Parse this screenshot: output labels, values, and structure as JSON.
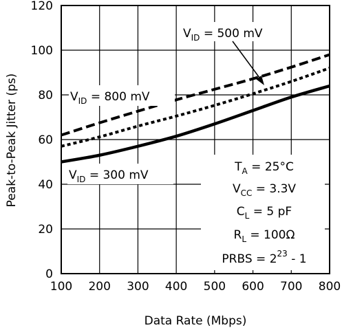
{
  "chart_data": {
    "type": "line",
    "xlabel": "Data Rate (Mbps)",
    "ylabel": "Peak-to-Peak Jitter (ps)",
    "xlim": [
      100,
      800
    ],
    "ylim": [
      0,
      120
    ],
    "x_ticks": [
      "100",
      "200",
      "300",
      "400",
      "500",
      "600",
      "700",
      "800"
    ],
    "y_ticks": [
      "0",
      "20",
      "40",
      "60",
      "80",
      "100",
      "120"
    ],
    "grid": true,
    "series": [
      {
        "name": "V_ID = 800 mV",
        "style": "dashed",
        "x": [
          100,
          200,
          300,
          400,
          500,
          600,
          700,
          800
        ],
        "y": [
          62,
          67.5,
          72.7,
          77.8,
          82.5,
          87.2,
          92.4,
          98
        ]
      },
      {
        "name": "V_ID = 500 mV",
        "style": "dotted",
        "x": [
          100,
          200,
          300,
          400,
          500,
          600,
          700,
          800
        ],
        "y": [
          57,
          61.2,
          66,
          70.5,
          75.3,
          80.5,
          86,
          92
        ]
      },
      {
        "name": "V_ID = 300 mV",
        "style": "solid",
        "x": [
          100,
          200,
          300,
          400,
          500,
          600,
          700,
          800
        ],
        "y": [
          50,
          53,
          57,
          61.5,
          67,
          73,
          79,
          84
        ]
      }
    ],
    "annotations": {
      "v800": {
        "v": "V",
        "sub": "ID",
        "rest": " = 800 mV"
      },
      "v500": {
        "v": "V",
        "sub": "ID",
        "rest": " = 500 mV"
      },
      "v300": {
        "v": "V",
        "sub": "ID",
        "rest": " = 300 mV"
      },
      "conditions": [
        {
          "main": "T",
          "sub": "A",
          "rest": " = 25°C"
        },
        {
          "main": "V",
          "sub": "CC",
          "rest": " = 3.3V"
        },
        {
          "main": "C",
          "sub": "L",
          "rest": " = 5 pF"
        },
        {
          "main": "R",
          "sub": "L",
          "rest": " = 100Ω"
        },
        {
          "main": "PRBS = 2",
          "sup": "23",
          "rest": " - 1"
        }
      ]
    }
  }
}
